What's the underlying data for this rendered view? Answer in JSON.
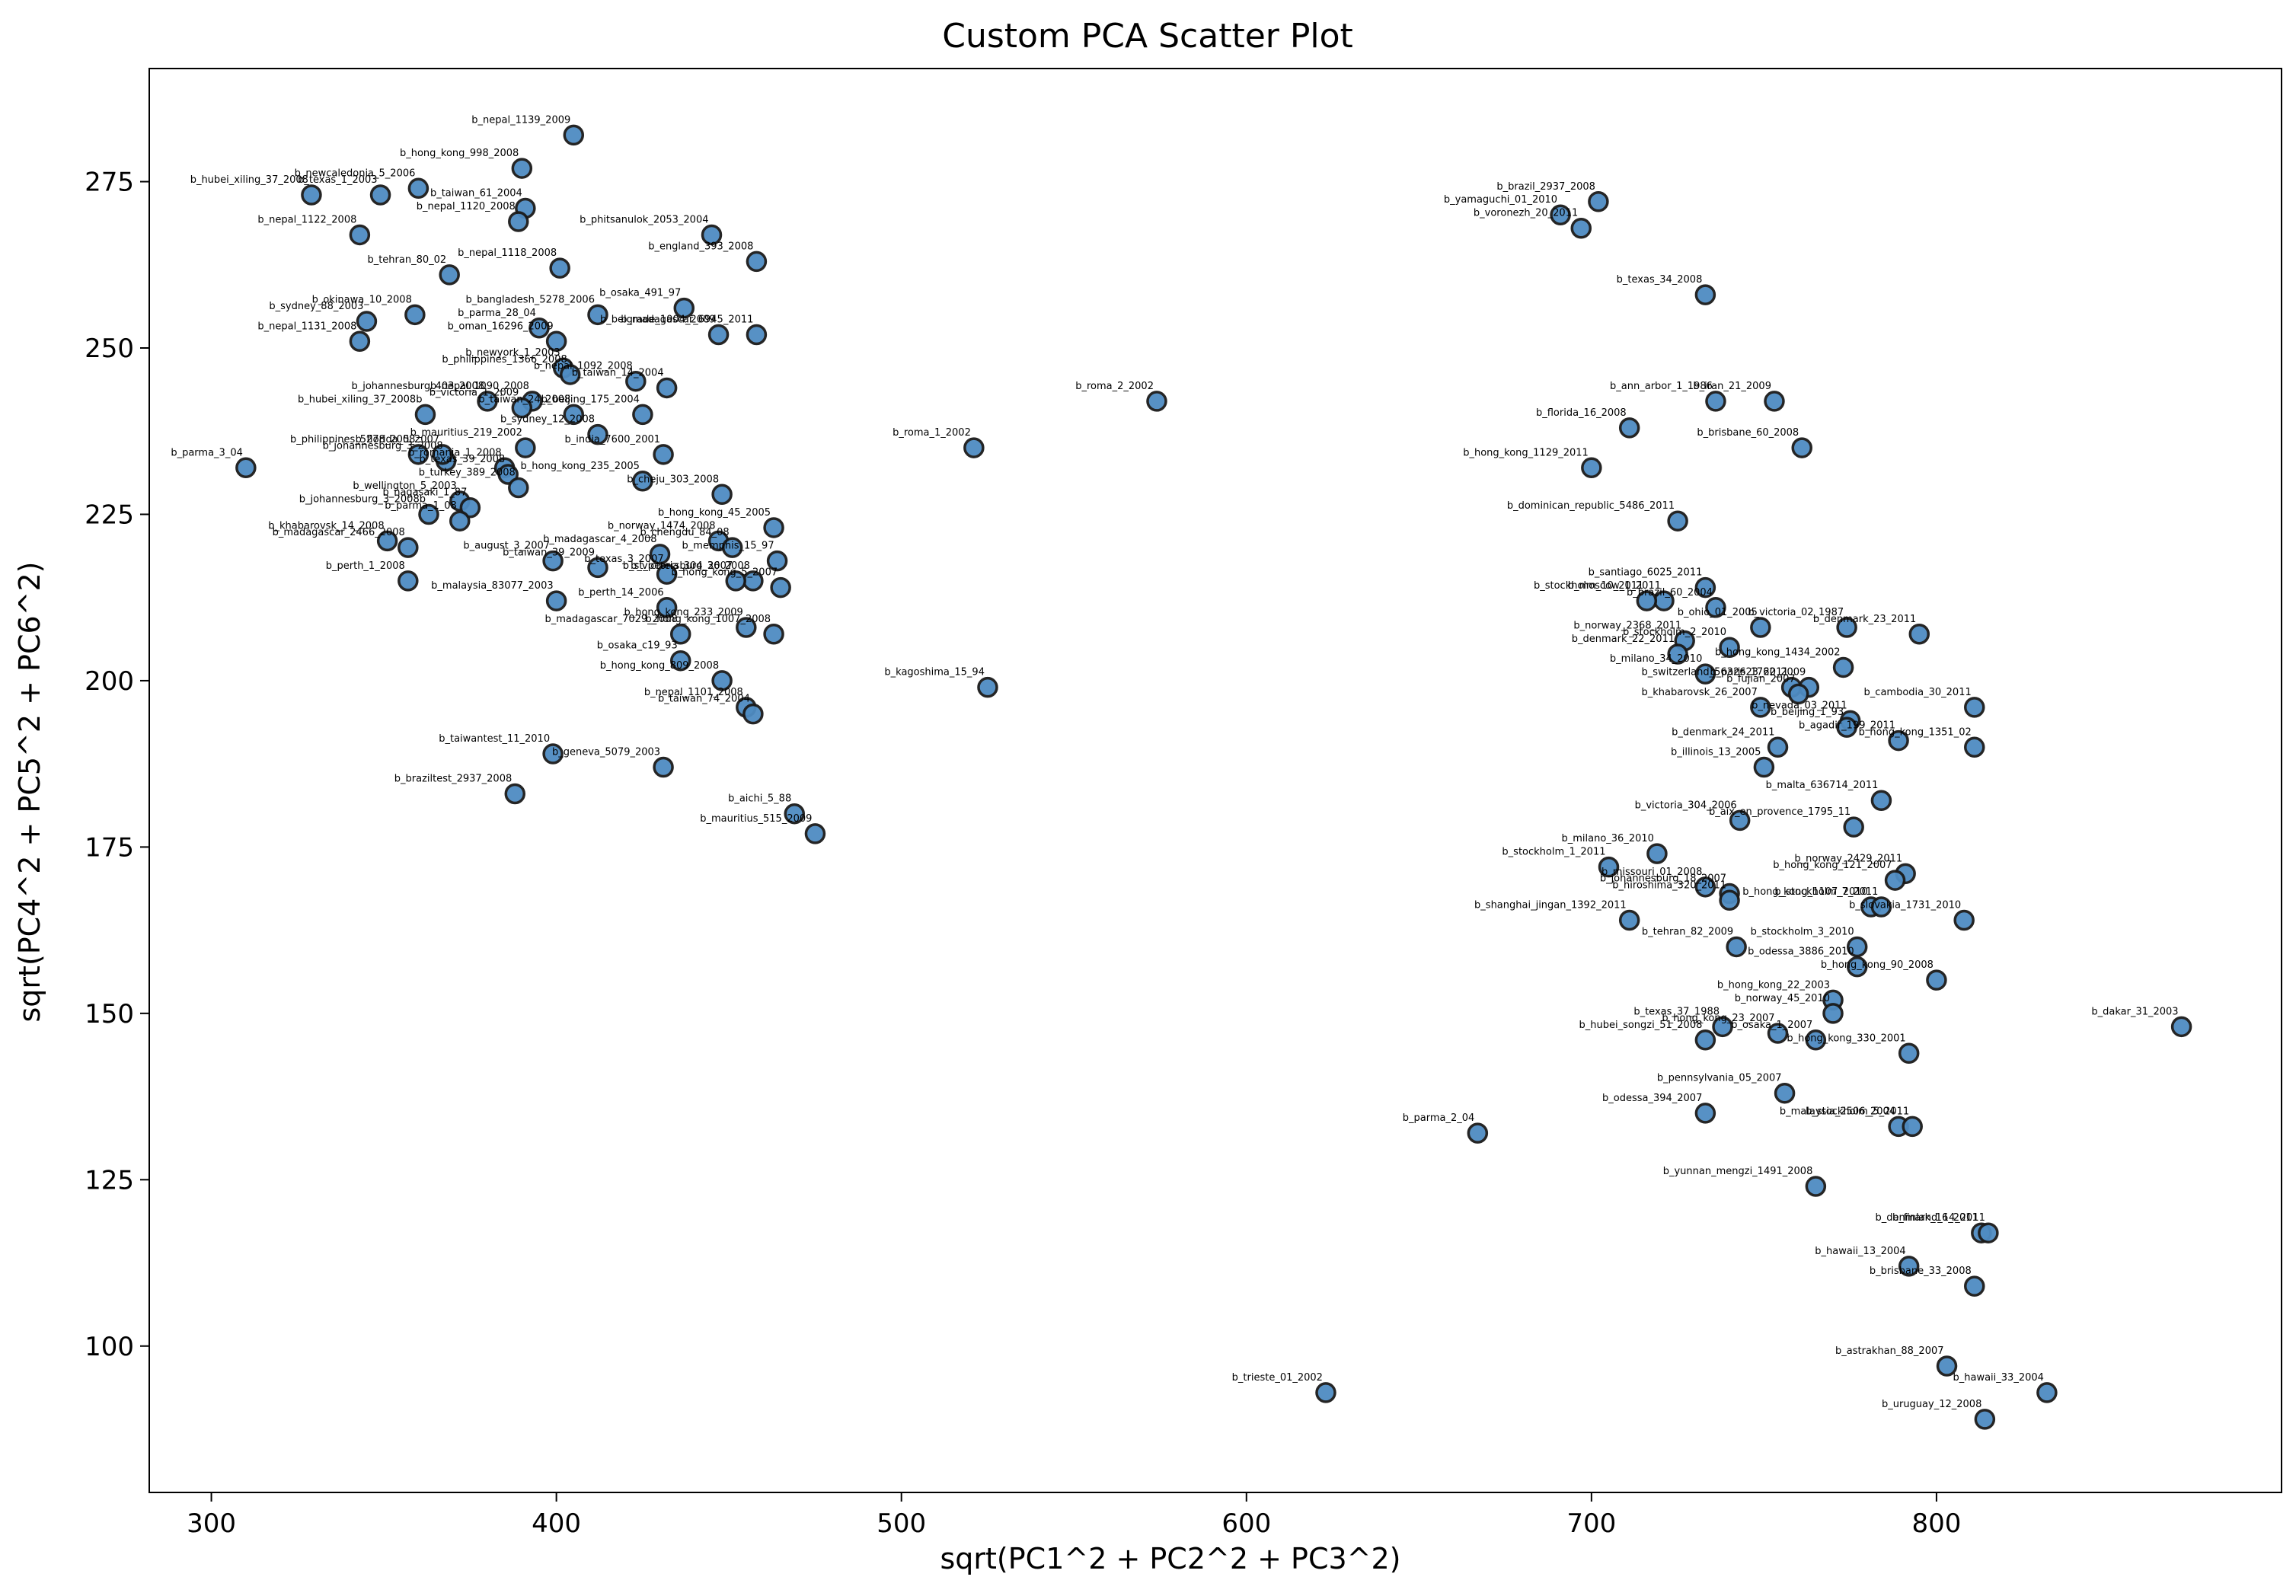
{
  "chart_data": {
    "type": "scatter",
    "title": "Custom PCA Scatter Plot",
    "xlabel": "sqrt(PC1^2 + PC2^2 + PC3^2)",
    "ylabel": "sqrt(PC4^2 + PC5^2 + PC6^2)",
    "xlim": [
      282,
      900
    ],
    "ylim": [
      78,
      292
    ],
    "xticks": [
      300,
      400,
      500,
      600,
      700,
      800
    ],
    "yticks": [
      100,
      125,
      150,
      175,
      200,
      225,
      250,
      275
    ],
    "grid": false,
    "legend": "none",
    "point_color": "#4f8cc2",
    "edge_color": "#1a1a1a",
    "points": [
      {
        "label": "b_nepal_1139_2009",
        "x": 405,
        "y": 282
      },
      {
        "label": "b_hong_kong_998_2008",
        "x": 390,
        "y": 277
      },
      {
        "label": "b_nepal_1122_2008",
        "x": 343,
        "y": 267
      },
      {
        "label": "b_taiwan_61_2004",
        "x": 391,
        "y": 271
      },
      {
        "label": "b_nepal_1120_2008",
        "x": 389,
        "y": 269
      },
      {
        "label": "b_phitsanulok_2053_2004",
        "x": 445,
        "y": 267
      },
      {
        "label": "b_england_393_2008",
        "x": 458,
        "y": 263
      },
      {
        "label": "b_nepal_1118_2008",
        "x": 401,
        "y": 262
      },
      {
        "label": "b_tehran_80_02",
        "x": 369,
        "y": 261
      },
      {
        "label": "b_hubei_xiling_37_2008",
        "x": 329,
        "y": 273
      },
      {
        "label": "b_newcaledonia_5_2006",
        "x": 360,
        "y": 274
      },
      {
        "label": "b_texas_1_2003",
        "x": 349,
        "y": 273
      },
      {
        "label": "b_brazil_2937_2008",
        "x": 702,
        "y": 272
      },
      {
        "label": "b_yamaguchi_01_2010",
        "x": 691,
        "y": 270
      },
      {
        "label": "b_voronezh_20_2011",
        "x": 697,
        "y": 268
      },
      {
        "label": "b_texas_34_2008",
        "x": 733,
        "y": 258
      },
      {
        "label": "b_osaka_491_97",
        "x": 437,
        "y": 256
      },
      {
        "label": "b_okinawa_10_2008",
        "x": 359,
        "y": 255
      },
      {
        "label": "b_bangladesh_5278_2006",
        "x": 412,
        "y": 255
      },
      {
        "label": "b_sydney_88_2003",
        "x": 345,
        "y": 254
      },
      {
        "label": "b_parma_28_04",
        "x": 395,
        "y": 253
      },
      {
        "label": "b_belgrade_1004_2009",
        "x": 447,
        "y": 252
      },
      {
        "label": "b_madagascar_6945_2011",
        "x": 458,
        "y": 252
      },
      {
        "label": "b_nepal_1131_2008",
        "x": 343,
        "y": 251
      },
      {
        "label": "b_oman_16296_2009",
        "x": 400,
        "y": 251
      },
      {
        "label": "b_newyork_1_2003",
        "x": 402,
        "y": 247
      },
      {
        "label": "b_philippines_1366_2008",
        "x": 404,
        "y": 246
      },
      {
        "label": "b_nepal_1092_2008",
        "x": 423,
        "y": 245
      },
      {
        "label": "b_taiwan_14_2004",
        "x": 432,
        "y": 244
      },
      {
        "label": "b_johannesburg_403_2008",
        "x": 380,
        "y": 242
      },
      {
        "label": "b_nepal_1090_2008",
        "x": 393,
        "y": 242
      },
      {
        "label": "b_ann_arbor_1_1986",
        "x": 736,
        "y": 242
      },
      {
        "label": "b_iran_21_2009",
        "x": 753,
        "y": 242
      },
      {
        "label": "b_roma_2_2002",
        "x": 574,
        "y": 242
      },
      {
        "label": "b_victoria_1_2009",
        "x": 390,
        "y": 241
      },
      {
        "label": "b_beijing_175_2004",
        "x": 425,
        "y": 240
      },
      {
        "label": "b_hubei_xiling_37_2008b",
        "x": 362,
        "y": 240
      },
      {
        "label": "b_taiwan_24_2008",
        "x": 405,
        "y": 240
      },
      {
        "label": "b_florida_16_2008",
        "x": 711,
        "y": 238
      },
      {
        "label": "b_sydney_12_2008",
        "x": 412,
        "y": 237
      },
      {
        "label": "b_brisbane_60_2008",
        "x": 761,
        "y": 235
      },
      {
        "label": "b_roma_1_2002",
        "x": 521,
        "y": 235
      },
      {
        "label": "b_mauritius_219_2002",
        "x": 391,
        "y": 235
      },
      {
        "label": "b_philippines_5278_2008",
        "x": 360,
        "y": 234
      },
      {
        "label": "b_india_7600_2001",
        "x": 431,
        "y": 234
      },
      {
        "label": "b_johannesburg_3_2008",
        "x": 368,
        "y": 233
      },
      {
        "label": "b_romania_1_2008",
        "x": 385,
        "y": 232
      },
      {
        "label": "b_florida_5_2007",
        "x": 367,
        "y": 234
      },
      {
        "label": "b_parma_3_04",
        "x": 310,
        "y": 232
      },
      {
        "label": "b_hong_kong_1129_2011",
        "x": 700,
        "y": 232
      },
      {
        "label": "b_texas_39_2008",
        "x": 386,
        "y": 231
      },
      {
        "label": "b_hong_kong_235_2005",
        "x": 425,
        "y": 230
      },
      {
        "label": "b_turkey_389_2008",
        "x": 389,
        "y": 229
      },
      {
        "label": "b_cheju_303_2008",
        "x": 448,
        "y": 228
      },
      {
        "label": "b_wellington_5_2003",
        "x": 372,
        "y": 227
      },
      {
        "label": "b_nagasaki_1_87",
        "x": 375,
        "y": 226
      },
      {
        "label": "b_johannesburg_3_2008b",
        "x": 363,
        "y": 225
      },
      {
        "label": "b_parma_1_08",
        "x": 372,
        "y": 224
      },
      {
        "label": "b_dominican_republic_5486_2011",
        "x": 725,
        "y": 224
      },
      {
        "label": "b_hong_kong_45_2005",
        "x": 463,
        "y": 223
      },
      {
        "label": "b_norway_1474_2008",
        "x": 447,
        "y": 221
      },
      {
        "label": "b_khabarovsk_14_2008",
        "x": 351,
        "y": 221
      },
      {
        "label": "b_madagascar_2466_2008",
        "x": 357,
        "y": 220
      },
      {
        "label": "b_chengdu_84_08",
        "x": 451,
        "y": 220
      },
      {
        "label": "b_madagascar_4_2008",
        "x": 430,
        "y": 219
      },
      {
        "label": "b_memphis_15_97",
        "x": 464,
        "y": 218
      },
      {
        "label": "b_august_3_2007",
        "x": 399,
        "y": 218
      },
      {
        "label": "b_taiwan_39_2009",
        "x": 412,
        "y": 217
      },
      {
        "label": "b_texas_3_2007",
        "x": 432,
        "y": 216
      },
      {
        "label": "b_st_petersburg_36_2008",
        "x": 457,
        "y": 215
      },
      {
        "label": "b_victoria_304_2007",
        "x": 452,
        "y": 215
      },
      {
        "label": "b_perth_1_2008",
        "x": 357,
        "y": 215
      },
      {
        "label": "b_hong_kong_5_2007",
        "x": 465,
        "y": 214
      },
      {
        "label": "b_santiago_6025_2011",
        "x": 733,
        "y": 214
      },
      {
        "label": "b_malaysia_83077_2003",
        "x": 400,
        "y": 212
      },
      {
        "label": "b_moscow_1_2011",
        "x": 721,
        "y": 212
      },
      {
        "label": "b_perth_14_2006",
        "x": 432,
        "y": 211
      },
      {
        "label": "b_stockholm_10_2011",
        "x": 716,
        "y": 212
      },
      {
        "label": "b_brazil_60_2004",
        "x": 736,
        "y": 211
      },
      {
        "label": "b_ohio_01_2005",
        "x": 749,
        "y": 208
      },
      {
        "label": "b_victoria_02_1987",
        "x": 774,
        "y": 208
      },
      {
        "label": "b_denmark_23_2011",
        "x": 795,
        "y": 207
      },
      {
        "label": "b_norway_2368_2011",
        "x": 727,
        "y": 206
      },
      {
        "label": "b_madagascar_7029_2008",
        "x": 436,
        "y": 207
      },
      {
        "label": "b_hong_kong_233_2009",
        "x": 455,
        "y": 208
      },
      {
        "label": "b_hong_kong_1007_2008",
        "x": 463,
        "y": 207
      },
      {
        "label": "b_stockholm_2_2010",
        "x": 740,
        "y": 205
      },
      {
        "label": "b_denmark_22_2011",
        "x": 725,
        "y": 204
      },
      {
        "label": "b_osaka_c19_93",
        "x": 436,
        "y": 203
      },
      {
        "label": "b_hong_kong_1434_2002",
        "x": 773,
        "y": 202
      },
      {
        "label": "b_milano_34_2010",
        "x": 733,
        "y": 201
      },
      {
        "label": "b_switzerland_5632623_2011",
        "x": 758,
        "y": 199
      },
      {
        "label": "b_paris_1762_2009",
        "x": 763,
        "y": 199
      },
      {
        "label": "b_fujian_2007",
        "x": 760,
        "y": 198
      },
      {
        "label": "b_hong_kong_809_2008",
        "x": 448,
        "y": 200
      },
      {
        "label": "b_kagoshima_15_94",
        "x": 525,
        "y": 199
      },
      {
        "label": "b_khabarovsk_26_2007",
        "x": 749,
        "y": 196
      },
      {
        "label": "b_cambodia_30_2011",
        "x": 811,
        "y": 196
      },
      {
        "label": "b_nepal_1101_2008",
        "x": 455,
        "y": 196
      },
      {
        "label": "b_taiwan_74_2004",
        "x": 457,
        "y": 195
      },
      {
        "label": "b_nevada_03_2011",
        "x": 775,
        "y": 194
      },
      {
        "label": "b_beijing_1_93",
        "x": 774,
        "y": 193
      },
      {
        "label": "b_agadir_199_2011",
        "x": 789,
        "y": 191
      },
      {
        "label": "b_hong_kong_1351_02",
        "x": 811,
        "y": 190
      },
      {
        "label": "b_denmark_24_2011",
        "x": 754,
        "y": 190
      },
      {
        "label": "b_taiwantest_11_2010",
        "x": 399,
        "y": 189
      },
      {
        "label": "b_geneva_5079_2003",
        "x": 431,
        "y": 187
      },
      {
        "label": "b_illinois_13_2005",
        "x": 750,
        "y": 187
      },
      {
        "label": "b_braziltest_2937_2008",
        "x": 388,
        "y": 183
      },
      {
        "label": "b_malta_636714_2011",
        "x": 784,
        "y": 182
      },
      {
        "label": "b_aichi_5_88",
        "x": 469,
        "y": 180
      },
      {
        "label": "b_victoria_304_2006",
        "x": 743,
        "y": 179
      },
      {
        "label": "b_aix_en_provence_1795_11",
        "x": 776,
        "y": 178
      },
      {
        "label": "b_mauritius_515_2009",
        "x": 475,
        "y": 177
      },
      {
        "label": "b_milano_36_2010",
        "x": 719,
        "y": 174
      },
      {
        "label": "b_stockholm_1_2011",
        "x": 705,
        "y": 172
      },
      {
        "label": "b_norway_2429_2011",
        "x": 791,
        "y": 171
      },
      {
        "label": "b_hong_kong_121_2007",
        "x": 788,
        "y": 170
      },
      {
        "label": "b_missouri_01_2008",
        "x": 733,
        "y": 169
      },
      {
        "label": "b_johannesburg_18_2007",
        "x": 740,
        "y": 168
      },
      {
        "label": "b_hiroshima_320_2011",
        "x": 740,
        "y": 167
      },
      {
        "label": "b_hong_kong_1107_2010",
        "x": 781,
        "y": 166
      },
      {
        "label": "b_stockholm_7_2011",
        "x": 784,
        "y": 166
      },
      {
        "label": "b_slovakia_1731_2010",
        "x": 808,
        "y": 164
      },
      {
        "label": "b_shanghai_jingan_1392_2011",
        "x": 711,
        "y": 164
      },
      {
        "label": "b_tehran_82_2009",
        "x": 742,
        "y": 160
      },
      {
        "label": "b_stockholm_3_2010",
        "x": 777,
        "y": 160
      },
      {
        "label": "b_odessa_3886_2010",
        "x": 777,
        "y": 157
      },
      {
        "label": "b_hong_kong_90_2008",
        "x": 800,
        "y": 155
      },
      {
        "label": "b_hong_kong_22_2003",
        "x": 770,
        "y": 152
      },
      {
        "label": "b_norway_45_2010",
        "x": 770,
        "y": 150
      },
      {
        "label": "b_dakar_31_2003",
        "x": 871,
        "y": 148
      },
      {
        "label": "b_texas_37_1988",
        "x": 738,
        "y": 148
      },
      {
        "label": "b_hong_kong_23_2007",
        "x": 754,
        "y": 147
      },
      {
        "label": "b_osaka_1_2007",
        "x": 765,
        "y": 146
      },
      {
        "label": "b_hubei_songzi_51_2008",
        "x": 733,
        "y": 146
      },
      {
        "label": "b_hong_kong_330_2001",
        "x": 792,
        "y": 144
      },
      {
        "label": "b_pennsylvania_05_2007",
        "x": 756,
        "y": 138
      },
      {
        "label": "b_odessa_394_2007",
        "x": 733,
        "y": 135
      },
      {
        "label": "b_malaysia_2506_2004",
        "x": 789,
        "y": 133
      },
      {
        "label": "b_stockholm_5_2011",
        "x": 793,
        "y": 133
      },
      {
        "label": "b_parma_2_04",
        "x": 667,
        "y": 132
      },
      {
        "label": "b_yunnan_mengzi_1491_2008",
        "x": 765,
        "y": 124
      },
      {
        "label": "b_denmark_16_2011",
        "x": 813,
        "y": 117
      },
      {
        "label": "b_finland_14_2011",
        "x": 815,
        "y": 117
      },
      {
        "label": "b_hawaii_13_2004",
        "x": 792,
        "y": 112
      },
      {
        "label": "b_brisbane_33_2008",
        "x": 811,
        "y": 109
      },
      {
        "label": "b_astrakhan_88_2007",
        "x": 803,
        "y": 97
      },
      {
        "label": "b_trieste_01_2002",
        "x": 623,
        "y": 93
      },
      {
        "label": "b_hawaii_33_2004",
        "x": 832,
        "y": 93
      },
      {
        "label": "b_uruguay_12_2008",
        "x": 814,
        "y": 89
      }
    ]
  }
}
